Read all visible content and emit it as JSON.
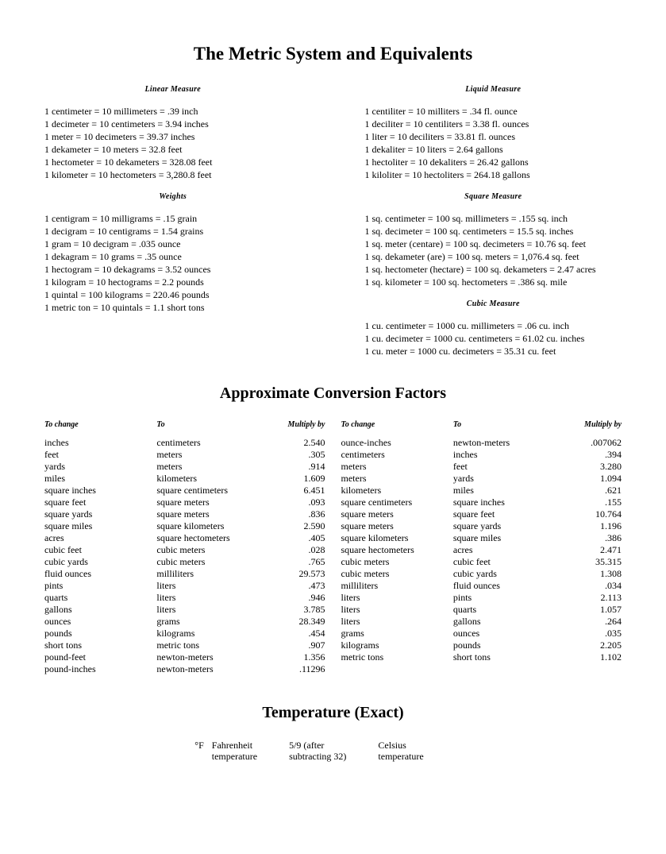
{
  "title": "The Metric System and Equivalents",
  "left": {
    "linear": {
      "heading": "Linear Measure",
      "lines": [
        "1 centimeter = 10 millimeters = .39 inch",
        "1 decimeter = 10 centimeters = 3.94 inches",
        "1 meter = 10 decimeters = 39.37 inches",
        "1 dekameter = 10 meters = 32.8 feet",
        "1 hectometer = 10 dekameters = 328.08 feet",
        "1 kilometer = 10 hectometers = 3,280.8 feet"
      ]
    },
    "weights": {
      "heading": "Weights",
      "lines": [
        "1 centigram = 10 milligrams = .15 grain",
        "1 decigram = 10 centigrams = 1.54 grains",
        "1 gram = 10 decigram = .035 ounce",
        "1 dekagram = 10 grams = .35 ounce",
        "1 hectogram = 10 dekagrams = 3.52 ounces",
        "1 kilogram = 10 hectograms = 2.2 pounds",
        "1 quintal = 100 kilograms = 220.46 pounds",
        "1 metric ton = 10 quintals = 1.1 short tons"
      ]
    }
  },
  "right": {
    "liquid": {
      "heading": "Liquid Measure",
      "lines": [
        "1 centiliter = 10 milliters = .34 fl. ounce",
        "1 deciliter = 10 centiliters = 3.38 fl. ounces",
        "1 liter = 10 deciliters = 33.81 fl. ounces",
        "1 dekaliter = 10 liters = 2.64 gallons",
        "1 hectoliter = 10 dekaliters = 26.42 gallons",
        "1 kiloliter = 10 hectoliters = 264.18 gallons"
      ]
    },
    "square": {
      "heading": "Square Measure",
      "lines": [
        "1 sq. centimeter = 100 sq. millimeters = .155 sq. inch",
        "1 sq. decimeter = 100 sq. centimeters = 15.5 sq. inches",
        "1 sq. meter (centare) = 100 sq. decimeters = 10.76 sq. feet",
        "1 sq. dekameter (are) = 100 sq. meters = 1,076.4 sq. feet",
        "1 sq. hectometer (hectare) = 100 sq. dekameters = 2.47 acres",
        "1 sq. kilometer = 100 sq. hectometers = .386 sq. mile"
      ]
    },
    "cubic": {
      "heading": "Cubic Measure",
      "lines": [
        "1 cu. centimeter = 1000 cu. millimeters = .06 cu. inch",
        "1 cu. decimeter = 1000 cu. centimeters = 61.02 cu. inches",
        "1 cu. meter = 1000 cu. decimeters = 35.31 cu. feet"
      ]
    }
  },
  "conv_title": "Approximate Conversion Factors",
  "conv_headers": {
    "from": "To change",
    "to": "To",
    "mult": "Multiply by"
  },
  "conv_left": [
    [
      "inches",
      "centimeters",
      "2.540"
    ],
    [
      "feet",
      "meters",
      ".305"
    ],
    [
      "yards",
      "meters",
      ".914"
    ],
    [
      "miles",
      "kilometers",
      "1.609"
    ],
    [
      "square inches",
      "square centimeters",
      "6.451"
    ],
    [
      "square feet",
      "square meters",
      ".093"
    ],
    [
      "square yards",
      "square meters",
      ".836"
    ],
    [
      "square miles",
      "square kilometers",
      "2.590"
    ],
    [
      "acres",
      "square hectometers",
      ".405"
    ],
    [
      "cubic feet",
      "cubic meters",
      ".028"
    ],
    [
      "cubic yards",
      "cubic meters",
      ".765"
    ],
    [
      "fluid ounces",
      "milliliters",
      "29.573"
    ],
    [
      "pints",
      "liters",
      ".473"
    ],
    [
      "quarts",
      "liters",
      ".946"
    ],
    [
      "gallons",
      "liters",
      "3.785"
    ],
    [
      "ounces",
      "grams",
      "28.349"
    ],
    [
      "pounds",
      "kilograms",
      ".454"
    ],
    [
      "short tons",
      "metric tons",
      ".907"
    ],
    [
      "pound-feet",
      "newton-meters",
      "1.356"
    ],
    [
      "pound-inches",
      "newton-meters",
      ".11296"
    ]
  ],
  "conv_right": [
    [
      "ounce-inches",
      "newton-meters",
      ".007062"
    ],
    [
      "centimeters",
      "inches",
      ".394"
    ],
    [
      "meters",
      "feet",
      "3.280"
    ],
    [
      "meters",
      "yards",
      "1.094"
    ],
    [
      "kilometers",
      "miles",
      ".621"
    ],
    [
      "square centimeters",
      "square inches",
      ".155"
    ],
    [
      "square meters",
      "square feet",
      "10.764"
    ],
    [
      "square meters",
      "square yards",
      "1.196"
    ],
    [
      "square kilometers",
      "square miles",
      ".386"
    ],
    [
      "square hectometers",
      "acres",
      "2.471"
    ],
    [
      "cubic meters",
      "cubic feet",
      "35.315"
    ],
    [
      "cubic meters",
      "cubic yards",
      "1.308"
    ],
    [
      "milliliters",
      "fluid ounces",
      ".034"
    ],
    [
      "liters",
      "pints",
      "2.113"
    ],
    [
      "liters",
      "quarts",
      "1.057"
    ],
    [
      "liters",
      "gallons",
      ".264"
    ],
    [
      "grams",
      "ounces",
      ".035"
    ],
    [
      "kilograms",
      "pounds",
      "2.205"
    ],
    [
      "metric tons",
      "short tons",
      "1.102"
    ]
  ],
  "temp_title": "Temperature (Exact)",
  "temp": {
    "f_sym": "°F",
    "f_label": "Fahrenheit\ntemperature",
    "formula": "5/9 (after\nsubtracting 32)",
    "c_label": "Celsius\ntemperature"
  }
}
